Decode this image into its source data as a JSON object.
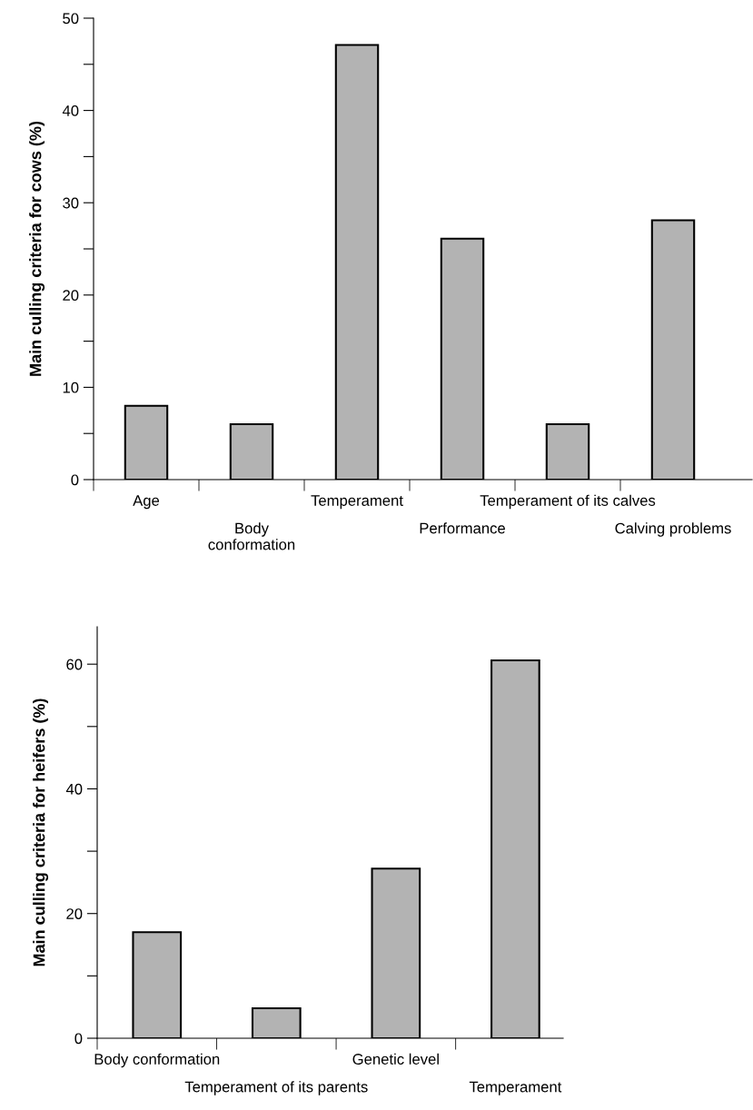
{
  "chart_data": [
    {
      "type": "bar",
      "ylabel": "Main culling criteria for cows (%)",
      "categories": [
        "Age",
        "Body\nconformation",
        "Temperament",
        "Performance",
        "Temperament of its calves",
        "Calving problems"
      ],
      "values": [
        8.0,
        6.0,
        47.1,
        26.1,
        6.0,
        28.1
      ],
      "color": "#b3b3b3",
      "ylim": [
        0,
        50
      ],
      "yticks": [
        0,
        {
          "value": 5,
          "label": null
        },
        10,
        {
          "value": 15,
          "label": null
        },
        20,
        {
          "value": 25,
          "label": null
        },
        30,
        {
          "value": 35,
          "label": null
        },
        40,
        {
          "value": 45,
          "label": null
        },
        50
      ],
      "grid": false,
      "legend": false
    },
    {
      "type": "bar",
      "ylabel": "Main culling criteria for heifers (%)",
      "categories": [
        "Body conformation",
        "Temperament of its parents",
        "Genetic level",
        "Temperament"
      ],
      "values": [
        17.0,
        4.8,
        27.2,
        60.6
      ],
      "color": "#b3b3b3",
      "ylim": [
        0,
        66
      ],
      "yticks": [
        0,
        {
          "value": 10,
          "label": null
        },
        20,
        {
          "value": 30,
          "label": null
        },
        40,
        {
          "value": 50,
          "label": null
        },
        60
      ],
      "grid": false,
      "legend": false
    }
  ]
}
